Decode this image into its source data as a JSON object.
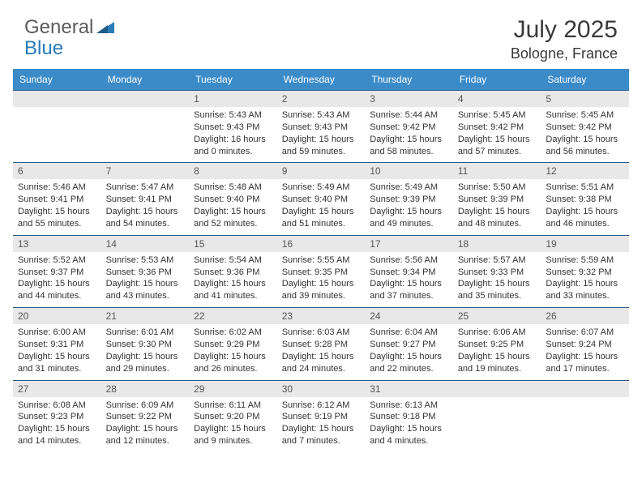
{
  "brand": {
    "part1": "General",
    "part2": "Blue"
  },
  "title": "July 2025",
  "location": "Bologne, France",
  "colors": {
    "header_bar": "#3b8bc8",
    "row_divider": "#2a5a8a",
    "daynum_bg": "#e8e8e8",
    "text": "#333333",
    "title_text": "#3a3a3a",
    "logo_gray": "#5a5a5a",
    "logo_blue": "#2a7ab8",
    "background": "#ffffff"
  },
  "typography": {
    "title_fontsize": 30,
    "location_fontsize": 18,
    "dayhead_fontsize": 12,
    "daynum_fontsize": 12,
    "body_fontsize": 11
  },
  "day_headers": [
    "Sunday",
    "Monday",
    "Tuesday",
    "Wednesday",
    "Thursday",
    "Friday",
    "Saturday"
  ],
  "weeks": [
    [
      {
        "n": "",
        "sr": "",
        "ss": "",
        "dl": ""
      },
      {
        "n": "",
        "sr": "",
        "ss": "",
        "dl": ""
      },
      {
        "n": "1",
        "sr": "Sunrise: 5:43 AM",
        "ss": "Sunset: 9:43 PM",
        "dl": "Daylight: 16 hours and 0 minutes."
      },
      {
        "n": "2",
        "sr": "Sunrise: 5:43 AM",
        "ss": "Sunset: 9:43 PM",
        "dl": "Daylight: 15 hours and 59 minutes."
      },
      {
        "n": "3",
        "sr": "Sunrise: 5:44 AM",
        "ss": "Sunset: 9:42 PM",
        "dl": "Daylight: 15 hours and 58 minutes."
      },
      {
        "n": "4",
        "sr": "Sunrise: 5:45 AM",
        "ss": "Sunset: 9:42 PM",
        "dl": "Daylight: 15 hours and 57 minutes."
      },
      {
        "n": "5",
        "sr": "Sunrise: 5:45 AM",
        "ss": "Sunset: 9:42 PM",
        "dl": "Daylight: 15 hours and 56 minutes."
      }
    ],
    [
      {
        "n": "6",
        "sr": "Sunrise: 5:46 AM",
        "ss": "Sunset: 9:41 PM",
        "dl": "Daylight: 15 hours and 55 minutes."
      },
      {
        "n": "7",
        "sr": "Sunrise: 5:47 AM",
        "ss": "Sunset: 9:41 PM",
        "dl": "Daylight: 15 hours and 54 minutes."
      },
      {
        "n": "8",
        "sr": "Sunrise: 5:48 AM",
        "ss": "Sunset: 9:40 PM",
        "dl": "Daylight: 15 hours and 52 minutes."
      },
      {
        "n": "9",
        "sr": "Sunrise: 5:49 AM",
        "ss": "Sunset: 9:40 PM",
        "dl": "Daylight: 15 hours and 51 minutes."
      },
      {
        "n": "10",
        "sr": "Sunrise: 5:49 AM",
        "ss": "Sunset: 9:39 PM",
        "dl": "Daylight: 15 hours and 49 minutes."
      },
      {
        "n": "11",
        "sr": "Sunrise: 5:50 AM",
        "ss": "Sunset: 9:39 PM",
        "dl": "Daylight: 15 hours and 48 minutes."
      },
      {
        "n": "12",
        "sr": "Sunrise: 5:51 AM",
        "ss": "Sunset: 9:38 PM",
        "dl": "Daylight: 15 hours and 46 minutes."
      }
    ],
    [
      {
        "n": "13",
        "sr": "Sunrise: 5:52 AM",
        "ss": "Sunset: 9:37 PM",
        "dl": "Daylight: 15 hours and 44 minutes."
      },
      {
        "n": "14",
        "sr": "Sunrise: 5:53 AM",
        "ss": "Sunset: 9:36 PM",
        "dl": "Daylight: 15 hours and 43 minutes."
      },
      {
        "n": "15",
        "sr": "Sunrise: 5:54 AM",
        "ss": "Sunset: 9:36 PM",
        "dl": "Daylight: 15 hours and 41 minutes."
      },
      {
        "n": "16",
        "sr": "Sunrise: 5:55 AM",
        "ss": "Sunset: 9:35 PM",
        "dl": "Daylight: 15 hours and 39 minutes."
      },
      {
        "n": "17",
        "sr": "Sunrise: 5:56 AM",
        "ss": "Sunset: 9:34 PM",
        "dl": "Daylight: 15 hours and 37 minutes."
      },
      {
        "n": "18",
        "sr": "Sunrise: 5:57 AM",
        "ss": "Sunset: 9:33 PM",
        "dl": "Daylight: 15 hours and 35 minutes."
      },
      {
        "n": "19",
        "sr": "Sunrise: 5:59 AM",
        "ss": "Sunset: 9:32 PM",
        "dl": "Daylight: 15 hours and 33 minutes."
      }
    ],
    [
      {
        "n": "20",
        "sr": "Sunrise: 6:00 AM",
        "ss": "Sunset: 9:31 PM",
        "dl": "Daylight: 15 hours and 31 minutes."
      },
      {
        "n": "21",
        "sr": "Sunrise: 6:01 AM",
        "ss": "Sunset: 9:30 PM",
        "dl": "Daylight: 15 hours and 29 minutes."
      },
      {
        "n": "22",
        "sr": "Sunrise: 6:02 AM",
        "ss": "Sunset: 9:29 PM",
        "dl": "Daylight: 15 hours and 26 minutes."
      },
      {
        "n": "23",
        "sr": "Sunrise: 6:03 AM",
        "ss": "Sunset: 9:28 PM",
        "dl": "Daylight: 15 hours and 24 minutes."
      },
      {
        "n": "24",
        "sr": "Sunrise: 6:04 AM",
        "ss": "Sunset: 9:27 PM",
        "dl": "Daylight: 15 hours and 22 minutes."
      },
      {
        "n": "25",
        "sr": "Sunrise: 6:06 AM",
        "ss": "Sunset: 9:25 PM",
        "dl": "Daylight: 15 hours and 19 minutes."
      },
      {
        "n": "26",
        "sr": "Sunrise: 6:07 AM",
        "ss": "Sunset: 9:24 PM",
        "dl": "Daylight: 15 hours and 17 minutes."
      }
    ],
    [
      {
        "n": "27",
        "sr": "Sunrise: 6:08 AM",
        "ss": "Sunset: 9:23 PM",
        "dl": "Daylight: 15 hours and 14 minutes."
      },
      {
        "n": "28",
        "sr": "Sunrise: 6:09 AM",
        "ss": "Sunset: 9:22 PM",
        "dl": "Daylight: 15 hours and 12 minutes."
      },
      {
        "n": "29",
        "sr": "Sunrise: 6:11 AM",
        "ss": "Sunset: 9:20 PM",
        "dl": "Daylight: 15 hours and 9 minutes."
      },
      {
        "n": "30",
        "sr": "Sunrise: 6:12 AM",
        "ss": "Sunset: 9:19 PM",
        "dl": "Daylight: 15 hours and 7 minutes."
      },
      {
        "n": "31",
        "sr": "Sunrise: 6:13 AM",
        "ss": "Sunset: 9:18 PM",
        "dl": "Daylight: 15 hours and 4 minutes."
      },
      {
        "n": "",
        "sr": "",
        "ss": "",
        "dl": ""
      },
      {
        "n": "",
        "sr": "",
        "ss": "",
        "dl": ""
      }
    ]
  ]
}
